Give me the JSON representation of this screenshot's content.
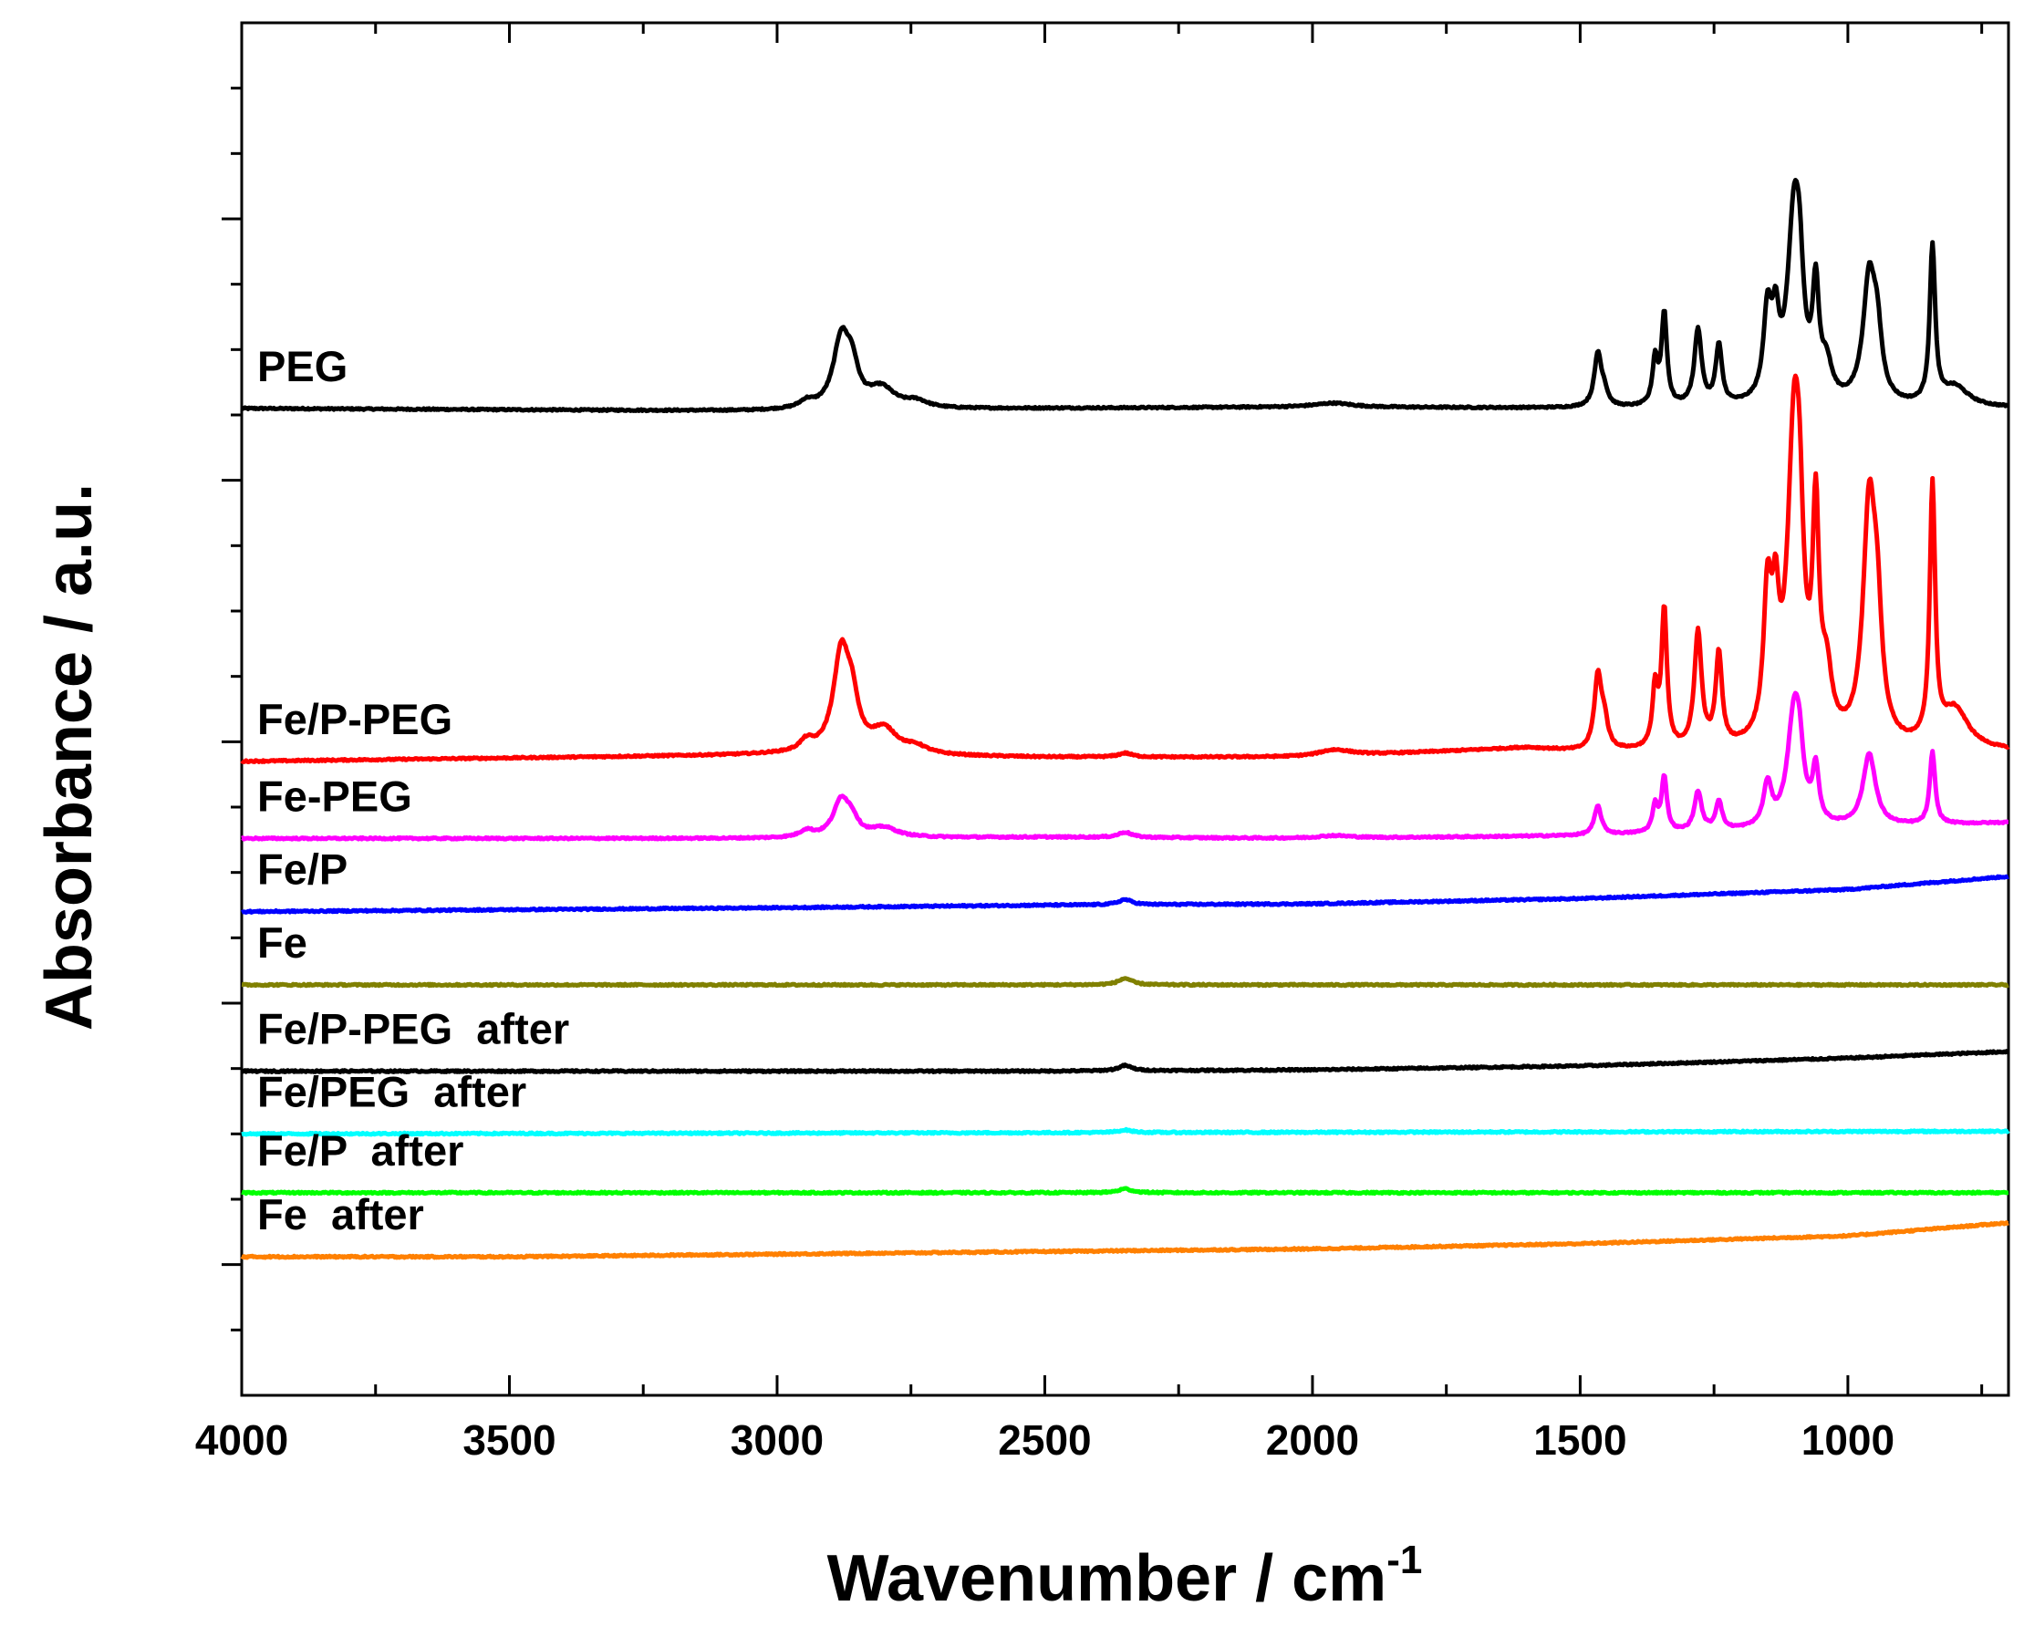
{
  "chart_data": {
    "type": "line",
    "title": "",
    "xlabel": "Wavenumber / cm",
    "xlabel_superscript": "-1",
    "ylabel": "Absorbance / a.u.",
    "xlim": [
      4000,
      700
    ],
    "x_reversed": true,
    "ylim": [
      0,
      10.5
    ],
    "xticks": [
      "4000",
      "3500",
      "3000",
      "2500",
      "2000",
      "1500",
      "1000"
    ],
    "y_ticks_labeled": false,
    "grid": false,
    "legend": "inline labels above each trace",
    "series": [
      {
        "name": "PEG",
        "label": "PEG",
        "color": "#000000",
        "baseline": 7.55,
        "drift": [
          [
            4000,
            0
          ],
          [
            3050,
            -0.02
          ],
          [
            2500,
            0
          ],
          [
            2000,
            0.01
          ],
          [
            1500,
            0
          ],
          [
            700,
            0
          ]
        ],
        "peaks": [
          [
            2945,
            0.05,
            15
          ],
          [
            2880,
            0.52,
            18
          ],
          [
            2860,
            0.25,
            14
          ],
          [
            2805,
            0.15,
            30
          ],
          [
            2740,
            0.05,
            25
          ],
          [
            1960,
            0.03,
            40
          ],
          [
            1467,
            0.4,
            8
          ],
          [
            1455,
            0.1,
            8
          ],
          [
            1360,
            0.35,
            6
          ],
          [
            1343,
            0.7,
            6
          ],
          [
            1280,
            0.58,
            8
          ],
          [
            1241,
            0.45,
            7
          ],
          [
            1150,
            0.65,
            9
          ],
          [
            1135,
            0.5,
            8
          ],
          [
            1100,
            1.45,
            15
          ],
          [
            1090,
            0.45,
            8
          ],
          [
            1060,
            0.8,
            7
          ],
          [
            1040,
            0.25,
            12
          ],
          [
            960,
            0.95,
            14
          ],
          [
            945,
            0.4,
            10
          ],
          [
            842,
            1.2,
            6
          ],
          [
            800,
            0.15,
            30
          ]
        ]
      },
      {
        "name": "Fe/P-PEG",
        "label": "Fe/P-PEG",
        "color": "#ff0000",
        "baseline": 4.85,
        "drift": [
          [
            4000,
            0
          ],
          [
            3000,
            0.05
          ],
          [
            2500,
            0.03
          ],
          [
            2000,
            0.03
          ],
          [
            1600,
            0.1
          ],
          [
            1500,
            0.07
          ],
          [
            700,
            0.07
          ]
        ],
        "peaks": [
          [
            2945,
            0.08,
            15
          ],
          [
            2880,
            0.75,
            18
          ],
          [
            2860,
            0.3,
            14
          ],
          [
            2800,
            0.18,
            30
          ],
          [
            2740,
            0.05,
            25
          ],
          [
            2350,
            0.03,
            15
          ],
          [
            1960,
            0.05,
            40
          ],
          [
            1467,
            0.55,
            8
          ],
          [
            1455,
            0.2,
            8
          ],
          [
            1360,
            0.45,
            6
          ],
          [
            1343,
            1.05,
            6
          ],
          [
            1280,
            0.88,
            8
          ],
          [
            1241,
            0.7,
            7
          ],
          [
            1150,
            1.05,
            9
          ],
          [
            1135,
            0.8,
            8
          ],
          [
            1100,
            2.4,
            15
          ],
          [
            1090,
            0.7,
            8
          ],
          [
            1060,
            1.6,
            7
          ],
          [
            1040,
            0.45,
            12
          ],
          [
            960,
            1.8,
            14
          ],
          [
            945,
            0.7,
            10
          ],
          [
            842,
            1.95,
            6
          ],
          [
            800,
            0.3,
            30
          ]
        ]
      },
      {
        "name": "Fe-PEG",
        "label": "Fe-PEG",
        "color": "#ff00ff",
        "baseline": 4.26,
        "drift": [
          [
            4000,
            0
          ],
          [
            3000,
            0
          ],
          [
            2500,
            0.01
          ],
          [
            2000,
            0
          ],
          [
            1500,
            0.02
          ],
          [
            700,
            0.12
          ]
        ],
        "peaks": [
          [
            2945,
            0.05,
            15
          ],
          [
            2880,
            0.28,
            18
          ],
          [
            2860,
            0.1,
            14
          ],
          [
            2800,
            0.07,
            30
          ],
          [
            2350,
            0.04,
            15
          ],
          [
            1960,
            0.02,
            40
          ],
          [
            1467,
            0.22,
            8
          ],
          [
            1360,
            0.2,
            6
          ],
          [
            1343,
            0.42,
            6
          ],
          [
            1280,
            0.3,
            8
          ],
          [
            1241,
            0.22,
            7
          ],
          [
            1150,
            0.32,
            9
          ],
          [
            1100,
            0.9,
            15
          ],
          [
            1090,
            0.25,
            8
          ],
          [
            1060,
            0.4,
            7
          ],
          [
            960,
            0.55,
            14
          ],
          [
            842,
            0.55,
            6
          ]
        ]
      },
      {
        "name": "Fe/P",
        "label": "Fe/P",
        "color": "#0000ff",
        "baseline": 3.7,
        "drift": [
          [
            4000,
            0
          ],
          [
            3000,
            0.03
          ],
          [
            2500,
            0.05
          ],
          [
            2000,
            0.06
          ],
          [
            1500,
            0.1
          ],
          [
            1000,
            0.17
          ],
          [
            700,
            0.27
          ]
        ],
        "peaks": [
          [
            2350,
            0.04,
            15
          ]
        ]
      },
      {
        "name": "Fe",
        "label": "Fe",
        "color": "#808000",
        "baseline": 3.14,
        "drift": [
          [
            4000,
            0
          ],
          [
            700,
            0
          ]
        ],
        "peaks": [
          [
            2350,
            0.05,
            15
          ]
        ]
      },
      {
        "name": "Fe/P-PEG after",
        "label": "Fe/P-PEG  after",
        "color": "#000000",
        "baseline": 2.48,
        "drift": [
          [
            4000,
            0
          ],
          [
            3000,
            0
          ],
          [
            2500,
            0
          ],
          [
            2000,
            0.01
          ],
          [
            1500,
            0.04
          ],
          [
            1000,
            0.1
          ],
          [
            700,
            0.15
          ]
        ],
        "peaks": [
          [
            2350,
            0.04,
            15
          ]
        ]
      },
      {
        "name": "Fe/PEG after",
        "label": "Fe/PEG  after",
        "color": "#00ffff",
        "baseline": 2.0,
        "drift": [
          [
            4000,
            0
          ],
          [
            700,
            0.02
          ]
        ],
        "peaks": [
          [
            2350,
            0.02,
            15
          ]
        ]
      },
      {
        "name": "Fe/P after",
        "label": "Fe/P  after",
        "color": "#00ff00",
        "baseline": 1.55,
        "drift": [
          [
            4000,
            0
          ],
          [
            700,
            0
          ]
        ],
        "peaks": [
          [
            2350,
            0.03,
            15
          ]
        ]
      },
      {
        "name": "Fe after",
        "label": "Fe  after",
        "color": "#ff8000",
        "baseline": 1.06,
        "drift": [
          [
            4000,
            0
          ],
          [
            3500,
            0
          ],
          [
            3000,
            0.02
          ],
          [
            2500,
            0.04
          ],
          [
            2000,
            0.06
          ],
          [
            1500,
            0.1
          ],
          [
            1000,
            0.16
          ],
          [
            700,
            0.26
          ]
        ],
        "peaks": []
      }
    ]
  }
}
